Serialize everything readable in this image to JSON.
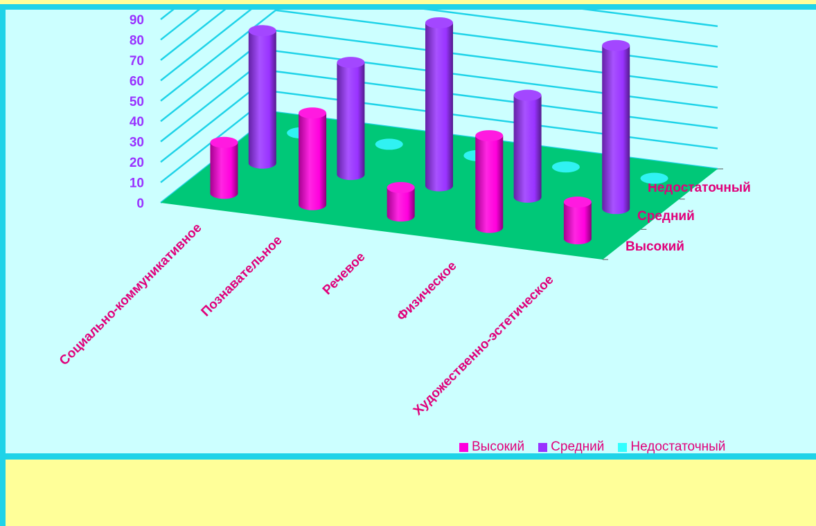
{
  "chart_data": {
    "type": "bar",
    "categories": [
      "Социально-коммуникативное",
      "Познавательное",
      "Речевое",
      "Физическое",
      "Художественно-эстетическое"
    ],
    "series": [
      {
        "name": "Высокий",
        "values": [
          25,
          45,
          14,
          45,
          18
        ],
        "color": "#ff00dd"
      },
      {
        "name": "Средний",
        "values": [
          65,
          55,
          80,
          50,
          80
        ],
        "color": "#9933ff"
      },
      {
        "name": "Недостаточный",
        "values": [
          0,
          0,
          0,
          0,
          0
        ],
        "color": "#33ffff"
      }
    ],
    "y_ticks": [
      "0",
      "10",
      "20",
      "30",
      "40",
      "50",
      "60",
      "70",
      "80",
      "90"
    ],
    "ylim": [
      0,
      90
    ],
    "depth_labels": [
      "Высокий",
      "Средний",
      "Недостаточный"
    ],
    "grid": true,
    "legend_position": "bottom-right",
    "floor_color": "#00c878",
    "tick_label_color": "#9933ff",
    "category_label_color": "#e0007a"
  }
}
